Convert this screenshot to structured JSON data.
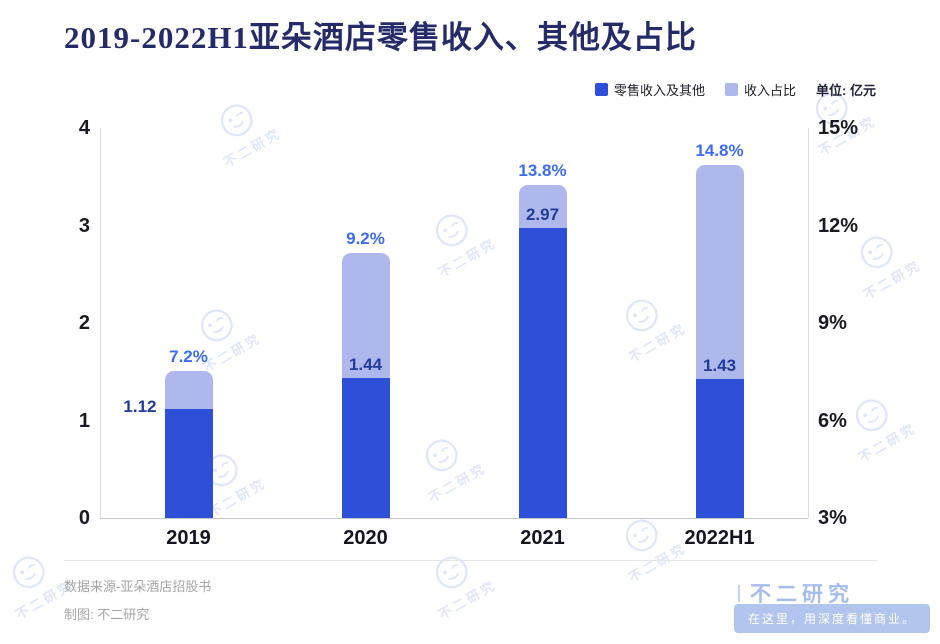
{
  "chart_data": {
    "type": "bar",
    "title": "2019-2022H1亚朵酒店零售收入、其他及占比",
    "categories": [
      "2019",
      "2020",
      "2021",
      "2022H1"
    ],
    "series": [
      {
        "name": "零售收入及其他",
        "axis": "left",
        "unit": "亿元",
        "color": "#2e4fd8",
        "values": [
          1.12,
          1.44,
          2.97,
          1.43
        ]
      },
      {
        "name": "收入占比",
        "axis": "right",
        "unit": "%",
        "color": "#aeb8ed",
        "values": [
          7.2,
          9.2,
          13.8,
          14.8
        ]
      }
    ],
    "value_labels": [
      "1.12",
      "1.44",
      "2.97",
      "1.43"
    ],
    "pct_labels": [
      "7.2%",
      "9.2%",
      "13.8%",
      "14.8%"
    ],
    "left_axis": {
      "range": [
        0,
        4
      ],
      "ticks": [
        "0",
        "1",
        "2",
        "3",
        "4"
      ]
    },
    "right_axis": {
      "range": [
        3,
        15
      ],
      "ticks": [
        "3%",
        "6%",
        "9%",
        "12%",
        "15%"
      ]
    },
    "stack_top_units": [
      1.51,
      2.72,
      3.42,
      3.62
    ],
    "grid": false,
    "legend_position": "top-right"
  },
  "legend": {
    "items": [
      {
        "label": "零售收入及其他",
        "color": "#2e4fd8"
      },
      {
        "label": "收入占比",
        "color": "#aeb8ed"
      }
    ],
    "unit_label": "单位: 亿元"
  },
  "watermark_text": "不二研究",
  "footer": {
    "source": "数据来源-亚朵酒店招股书",
    "credit": "制图: 不二研究",
    "brand": "不二研究",
    "slogan": "在这里，用深度看懂商业。"
  }
}
